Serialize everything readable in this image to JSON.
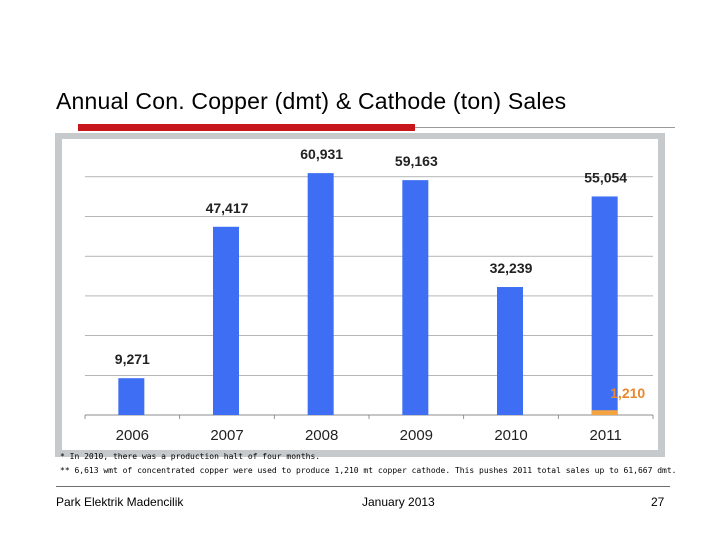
{
  "slide": {
    "title": "Annual Con. Copper (dmt) & Cathode (ton) Sales",
    "footnote_1": "* In 2010, there was a production halt of four months.",
    "footnote_2": "** 6,613 wmt of concentrated copper were used to produce 1,210 mt copper cathode. This pushes 2011 total sales up to 61,667 dmt.",
    "footer_left": "Park Elektrik Madencilik",
    "footer_center": "January 2013",
    "page_number": "27"
  },
  "colors": {
    "accent_red": "#c8161d",
    "bar_blue": "#3e6ef3",
    "bar_orange": "#f4a340",
    "label_orange": "#e8872b",
    "panel_gray": "#c6cacd",
    "plot_bg": "#ffffff"
  },
  "chart_data": {
    "type": "bar",
    "title": "",
    "xlabel": "",
    "ylabel": "",
    "ylim": [
      0,
      66000
    ],
    "grid": true,
    "gridline_values": [
      0,
      10000,
      20000,
      30000,
      40000,
      50000,
      60000
    ],
    "categories": [
      "2006",
      "2007",
      "2008",
      "2009",
      "2010",
      "2011"
    ],
    "series": [
      {
        "name": "Concentrated Copper (dmt)",
        "values": [
          9271,
          47417,
          60931,
          59163,
          32239,
          55054
        ],
        "labels": [
          "9,271",
          "47,417",
          "60,931",
          "59,163",
          "32,239",
          "55,054"
        ]
      },
      {
        "name": "Copper Cathode (ton)",
        "values": [
          null,
          null,
          null,
          null,
          null,
          1210
        ],
        "labels": [
          "",
          "",
          "",
          "",
          "",
          "1,210"
        ]
      }
    ]
  }
}
